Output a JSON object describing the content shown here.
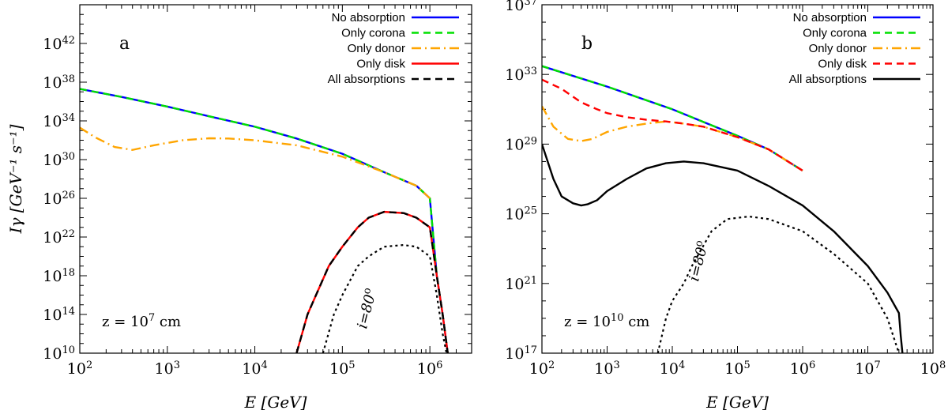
{
  "chart_data": [
    {
      "type": "line",
      "panel_label": "a",
      "xlabel": "E [GeV]",
      "ylabel": "Iγ [GeV⁻¹ s⁻¹]",
      "xscale": "log",
      "yscale": "log",
      "xlim": [
        100,
        3000000
      ],
      "ylim": [
        10000000000.0,
        1e+46
      ],
      "x_ticks": [
        100,
        1000,
        10000,
        100000,
        1000000
      ],
      "x_tick_labels": [
        {
          "base": "10",
          "exp": "2"
        },
        {
          "base": "10",
          "exp": "3"
        },
        {
          "base": "10",
          "exp": "4"
        },
        {
          "base": "10",
          "exp": "5"
        },
        {
          "base": "10",
          "exp": "6"
        }
      ],
      "y_ticks": [
        10000000000.0,
        100000000000000.0,
        1e+18,
        1e+22,
        1e+26,
        1e+30,
        1e+34,
        1e+38,
        1e+42
      ],
      "y_tick_labels": [
        {
          "base": "10",
          "exp": "10"
        },
        {
          "base": "10",
          "exp": "14"
        },
        {
          "base": "10",
          "exp": "18"
        },
        {
          "base": "10",
          "exp": "22"
        },
        {
          "base": "10",
          "exp": "26"
        },
        {
          "base": "10",
          "exp": "30"
        },
        {
          "base": "10",
          "exp": "34"
        },
        {
          "base": "10",
          "exp": "38"
        },
        {
          "base": "10",
          "exp": "42"
        }
      ],
      "legend_position": "top-right",
      "annotations": {
        "height": {
          "prefix": "z = 10",
          "exp": "7",
          "suffix": " cm"
        },
        "inclination": {
          "var": "i",
          "eq": "=80",
          "exp": "o"
        }
      },
      "series": [
        {
          "name": "No absorption",
          "color": "#0000ff",
          "style": "solid",
          "in_legend": true,
          "x": [
            100,
            300,
            1000,
            3000,
            10000,
            30000,
            100000,
            300000,
            700000,
            1000000,
            1200000,
            1400000,
            1600000
          ],
          "y": [
            2e+37,
            3e+36,
            3e+35,
            3e+34,
            2.5e+33,
            1.5e+32,
            4e+30,
            5e+28,
            2e+27,
            1e+26,
            1e+18,
            100000000000000.0,
            10000000000.0
          ]
        },
        {
          "name": "Only corona",
          "color": "#00e000",
          "style": "dashed",
          "in_legend": true,
          "x": [
            100,
            300,
            1000,
            3000,
            10000,
            30000,
            100000,
            300000,
            700000,
            1000000,
            1200000,
            1400000,
            1600000
          ],
          "y": [
            2e+37,
            3e+36,
            3e+35,
            3e+34,
            2.5e+33,
            1.5e+32,
            4e+30,
            5e+28,
            2e+27,
            1e+26,
            1e+18,
            100000000000000.0,
            10000000000.0
          ]
        },
        {
          "name": "Only donor",
          "color": "#ffa500",
          "style": "dashdot",
          "in_legend": true,
          "x": [
            100,
            150,
            250,
            400,
            700,
            1500,
            3000,
            5000,
            10000,
            30000,
            100000,
            300000,
            700000,
            1000000
          ],
          "y": [
            2e+33,
            2e+32,
            2e+31,
            1e+31,
            3e+31,
            1e+32,
            1.6e+32,
            1.5e+32,
            1e+32,
            3e+31,
            2e+30,
            5e+28,
            2e+27,
            1e+26
          ]
        },
        {
          "name": "Only disk",
          "color": "#ff0000",
          "style": "solid",
          "in_legend": true,
          "x": [
            30000,
            40000,
            50000,
            70000,
            100000,
            150000,
            200000,
            300000,
            500000,
            700000,
            1000000,
            1200000,
            1400000,
            1600000
          ],
          "y": [
            10000000000.0,
            100000000000000.0,
            1e+16,
            1e+19,
            1e+21,
            1e+23,
            1e+24,
            4e+24,
            3e+24,
            1e+24,
            1e+23,
            1e+18,
            100000000000000.0,
            10000000000.0
          ]
        },
        {
          "name": "All absorptions",
          "color": "#000000",
          "style": "dashed",
          "in_legend": true,
          "x": [
            30000,
            40000,
            50000,
            70000,
            100000,
            150000,
            200000,
            300000,
            500000,
            700000,
            1000000,
            1200000,
            1400000,
            1600000
          ],
          "y": [
            10000000000.0,
            100000000000000.0,
            1e+16,
            1e+19,
            1e+21,
            1e+23,
            1e+24,
            4e+24,
            3e+24,
            1e+24,
            1e+23,
            1e+18,
            100000000000000.0,
            10000000000.0
          ]
        },
        {
          "name": "i=80°",
          "color": "#000000",
          "style": "dotted",
          "in_legend": false,
          "x": [
            60000,
            80000,
            100000,
            150000,
            200000,
            300000,
            500000,
            700000,
            1000000,
            1200000,
            1400000,
            1550000
          ],
          "y": [
            10000000000.0,
            100000000000000.0,
            1e+16,
            1e+19,
            1e+20,
            1e+21,
            1.5e+21,
            1e+21,
            1e+20,
            1e+16,
            1000000000000.0,
            10000000000.0
          ]
        }
      ]
    },
    {
      "type": "line",
      "panel_label": "b",
      "xlabel": "E [GeV]",
      "ylabel": "",
      "xscale": "log",
      "yscale": "log",
      "xlim": [
        100,
        100000000
      ],
      "ylim": [
        1e+17,
        1e+37
      ],
      "x_ticks": [
        100,
        1000,
        10000,
        100000,
        1000000,
        10000000,
        100000000
      ],
      "x_tick_labels": [
        {
          "base": "10",
          "exp": "2"
        },
        {
          "base": "10",
          "exp": "3"
        },
        {
          "base": "10",
          "exp": "4"
        },
        {
          "base": "10",
          "exp": "5"
        },
        {
          "base": "10",
          "exp": "6"
        },
        {
          "base": "10",
          "exp": "7"
        },
        {
          "base": "10",
          "exp": "8"
        }
      ],
      "y_ticks": [
        1e+17,
        1e+21,
        1e+25,
        1e+29,
        1e+33,
        1e+37
      ],
      "y_tick_labels": [
        {
          "base": "10",
          "exp": "17"
        },
        {
          "base": "10",
          "exp": "21"
        },
        {
          "base": "10",
          "exp": "25"
        },
        {
          "base": "10",
          "exp": "29"
        },
        {
          "base": "10",
          "exp": "33"
        },
        {
          "base": "10",
          "exp": "37"
        }
      ],
      "legend_position": "top-right",
      "annotations": {
        "height": {
          "prefix": "z = 10",
          "exp": "10",
          "suffix": " cm"
        },
        "inclination": {
          "var": "i",
          "eq": "=80",
          "exp": "o"
        }
      },
      "series": [
        {
          "name": "No absorption",
          "color": "#0000ff",
          "style": "solid",
          "in_legend": true,
          "x": [
            100,
            1000,
            10000,
            100000,
            300000,
            1000000
          ],
          "y": [
            3e+33,
            2e+32,
            1e+31,
            3e+29,
            5e+28,
            3e+27
          ]
        },
        {
          "name": "Only corona",
          "color": "#00e000",
          "style": "dashed",
          "in_legend": true,
          "x": [
            100,
            1000,
            10000,
            100000,
            300000,
            1000000
          ],
          "y": [
            3e+33,
            2e+32,
            1e+31,
            3e+29,
            5e+28,
            3e+27
          ]
        },
        {
          "name": "Only donor",
          "color": "#ffa500",
          "style": "dashdot",
          "in_legend": true,
          "x": [
            100,
            150,
            250,
            400,
            600,
            1000,
            2000,
            4000,
            8000,
            15000,
            30000,
            100000,
            300000,
            1000000
          ],
          "y": [
            1.5e+31,
            1e+30,
            2e+29,
            1.5e+29,
            2e+29,
            5e+29,
            1e+30,
            1.5e+30,
            2e+30,
            1.5e+30,
            1e+30,
            2.5e+29,
            5e+28,
            3e+27
          ]
        },
        {
          "name": "Only disk",
          "color": "#ff0000",
          "style": "dashed",
          "in_legend": true,
          "x": [
            100,
            200,
            400,
            700,
            1000,
            2000,
            4000,
            8000,
            15000,
            30000,
            100000,
            300000,
            1000000
          ],
          "y": [
            5e+32,
            1.5e+32,
            2.5e+31,
            1e+31,
            6e+30,
            3.5e+30,
            2.5e+30,
            2e+30,
            1.5e+30,
            1e+30,
            2.5e+29,
            5e+28,
            3e+27
          ]
        },
        {
          "name": "All absorptions",
          "color": "#000000",
          "style": "solid",
          "in_legend": true,
          "x": [
            100,
            150,
            200,
            300,
            400,
            500,
            700,
            1000,
            2000,
            4000,
            8000,
            15000,
            30000,
            100000,
            300000,
            1000000,
            3000000,
            10000000,
            20000000,
            30000000,
            32000000,
            34000000
          ],
          "y": [
            1e+29,
            1e+27,
            1e+26,
            4e+25,
            3e+25,
            3.5e+25,
            6e+25,
            2e+26,
            1e+27,
            4e+27,
            8e+27,
            1e+28,
            8e+27,
            3e+27,
            4e+26,
            3e+25,
            1e+24,
            1e+22,
            3e+20,
            2e+19,
            1e+18,
            1e+17
          ]
        },
        {
          "name": "i=80°",
          "color": "#000000",
          "style": "dotted",
          "in_legend": false,
          "x": [
            6000,
            8000,
            10000,
            15000,
            20000,
            40000,
            70000,
            150000,
            300000,
            1000000,
            3000000,
            10000000,
            20000000,
            30000000
          ],
          "y": [
            1e+17,
            1e+19,
            1e+20,
            1e+21,
            1e+22,
            1e+24,
            5e+24,
            7e+24,
            5e+24,
            1e+24,
            5e+22,
            1e+21,
            1e+19,
            1e+17
          ]
        }
      ]
    }
  ]
}
